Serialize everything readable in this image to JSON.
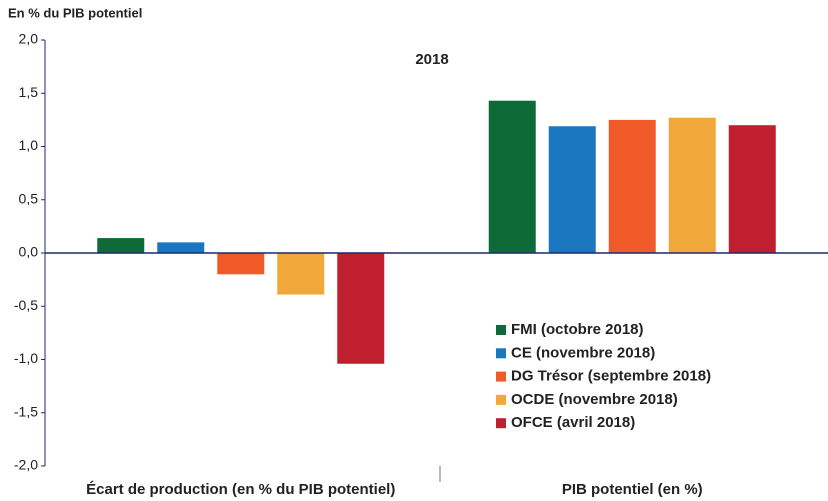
{
  "chart_data": {
    "type": "bar",
    "title": "2018",
    "y_label": "En % du PIB potentiel",
    "categories": [
      "Écart de production (en % du PIB potentiel)",
      "PIB potentiel (en %)"
    ],
    "series": [
      {
        "name": "FMI (octobre 2018)",
        "color": "#0e6b38",
        "values": [
          0.14,
          1.43
        ]
      },
      {
        "name": "CE (novembre 2018)",
        "color": "#1a76bf",
        "values": [
          0.1,
          1.19
        ]
      },
      {
        "name": "DG Trésor (septembre 2018)",
        "color": "#f05a28",
        "values": [
          -0.2,
          1.25
        ]
      },
      {
        "name": "OCDE (novembre 2018)",
        "color": "#f0a83a",
        "values": [
          -0.39,
          1.27
        ]
      },
      {
        "name": "OFCE (avril 2018)",
        "color": "#c01f2f",
        "values": [
          -1.04,
          1.2
        ]
      }
    ],
    "ylim": [
      -2,
      2
    ],
    "yticks": [
      {
        "value": -2,
        "label": "-2,0"
      },
      {
        "value": -1.5,
        "label": "-1,5"
      },
      {
        "value": -1,
        "label": "-1,0"
      },
      {
        "value": -0.5,
        "label": "-0,5"
      },
      {
        "value": 0,
        "label": "0,0"
      },
      {
        "value": 0.5,
        "label": "0,5"
      },
      {
        "value": 1,
        "label": "1,0"
      },
      {
        "value": 1.5,
        "label": "1,5"
      },
      {
        "value": 2,
        "label": "2,0"
      }
    ],
    "legend": "lower right"
  }
}
